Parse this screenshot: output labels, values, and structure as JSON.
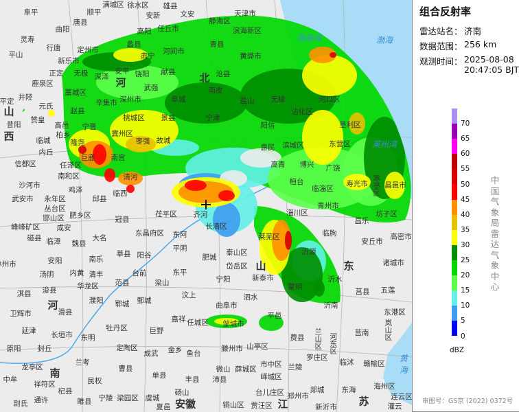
{
  "panel": {
    "title": "组合反射率",
    "station_label": "雷达站名：",
    "station": "济南",
    "range_label": "数据范围：",
    "range": "256 km",
    "time_label": "观测时间：",
    "date": "2025-08-08",
    "time": "20:47:05 BJT",
    "unit": "dBZ",
    "agency": "中国气象局雷达气象中心",
    "approval": "审图号：GS京 (2022) 0372号"
  },
  "legend": {
    "ticks": [
      "70",
      "65",
      "60",
      "55",
      "50",
      "45",
      "40",
      "35",
      "30",
      "25",
      "20",
      "15",
      "10",
      "5",
      "0"
    ],
    "colors": [
      "#ad90f0",
      "#9600b4",
      "#ff00f0",
      "#c00000",
      "#d60000",
      "#ff0000",
      "#ff9000",
      "#e7c000",
      "#ffff00",
      "#008c00",
      "#00d800",
      "#5cff4c",
      "#63f0e8",
      "#3f9cf0",
      "#0000f6"
    ]
  },
  "map": {
    "radar_site_marker": "plus-icon",
    "provinces": [
      "山",
      "西",
      "河",
      "北",
      "河",
      "南",
      "山",
      "东",
      "江",
      "苏",
      "安徽"
    ],
    "seas": [
      "渤海湾",
      "渤海",
      "莱州湾",
      "黄海"
    ],
    "places": [
      "阜平",
      "顺平",
      "满城区",
      "徐水区",
      "安新",
      "雄县",
      "文安",
      "唐县",
      "曲阳",
      "灵寿",
      "行唐",
      "平山",
      "新乐市",
      "定州市",
      "正定",
      "无极",
      "深泽",
      "鹿泉区",
      "藁城区",
      "井陉",
      "赵县",
      "元氏",
      "平定",
      "昔阳",
      "赞皇",
      "高邑",
      "柏乡",
      "临城",
      "隆尧",
      "内丘",
      "巨鹿",
      "信都区",
      "任泽区",
      "南和区",
      "沙河市",
      "武安市",
      "永年区",
      "鸡泽",
      "邱县",
      "高阳",
      "任丘市",
      "蠡县",
      "河间市",
      "肃宁",
      "献县",
      "安平",
      "饶阳",
      "武强",
      "深州市",
      "辛集市",
      "阜城",
      "景县",
      "桃城区",
      "冀州区",
      "枣强",
      "故城",
      "清河",
      "临西",
      "宁晋",
      "南宫",
      "天津市",
      "静海区",
      "滨海新区",
      "青县",
      "黄骅市",
      "沧县",
      "南皮",
      "盐山",
      "无棣",
      "宁津",
      "阳信",
      "沾化区",
      "河口区",
      "垦利区",
      "东营区",
      "惠民",
      "滨城区",
      "博兴",
      "高青",
      "桓台",
      "临淄区",
      "广饶",
      "寿光市",
      "寒亭区",
      "昌邑市",
      "茌平区",
      "齐河",
      "冠县",
      "东昌府区",
      "东阿",
      "莘县",
      "阳谷",
      "平阴",
      "东平",
      "台前",
      "梁山",
      "范县",
      "汶上",
      "鄄城",
      "郓城",
      "嘉祥",
      "任城区",
      "巨野",
      "牡丹区",
      "金乡",
      "鱼台",
      "成武",
      "定陶区",
      "单县",
      "丰县",
      "曹县",
      "东明",
      "长垣市",
      "兰考",
      "封丘",
      "原阳",
      "延津",
      "卫辉市",
      "滑县",
      "濮阳",
      "华龙区",
      "清丰",
      "南乐",
      "大名",
      "魏县",
      "临漳",
      "成安",
      "肥乡区",
      "邯山区",
      "丛台区",
      "峰峰矿区",
      "磁县",
      "安阳",
      "内黄",
      "汤阴",
      "浚县",
      "淇县",
      "林州市",
      "龙亭区",
      "祥符区",
      "中牟",
      "杞县",
      "民权",
      "通许",
      "尉氏",
      "睢县",
      "宁陵",
      "梁园区",
      "虞城",
      "砀山",
      "夏邑",
      "淄川区",
      "青州市",
      "临朐",
      "昌乐",
      "坊子区",
      "高密市",
      "安丘市",
      "诸城市",
      "莱芜区",
      "泰山区",
      "岱岳区",
      "宁阳",
      "新泰市",
      "蒙阴",
      "沂源",
      "沂水",
      "莒县",
      "五莲",
      "泗水",
      "曲阜市",
      "平邑",
      "沂南",
      "东港区",
      "邹城市",
      "费县",
      "兰山区",
      "河东区",
      "莒南",
      "岚山区",
      "滕州市",
      "山亭区",
      "罗庄区",
      "临沭",
      "赣榆区",
      "微山",
      "薛城区",
      "市中区",
      "峄城区",
      "兰陵",
      "沛县",
      "台儿庄区",
      "郯城",
      "东海",
      "海州区",
      "连云区",
      "邳州市",
      "铜山区",
      "贾汪区",
      "新沂市",
      "灌云",
      "长清区",
      "肥城"
    ]
  }
}
